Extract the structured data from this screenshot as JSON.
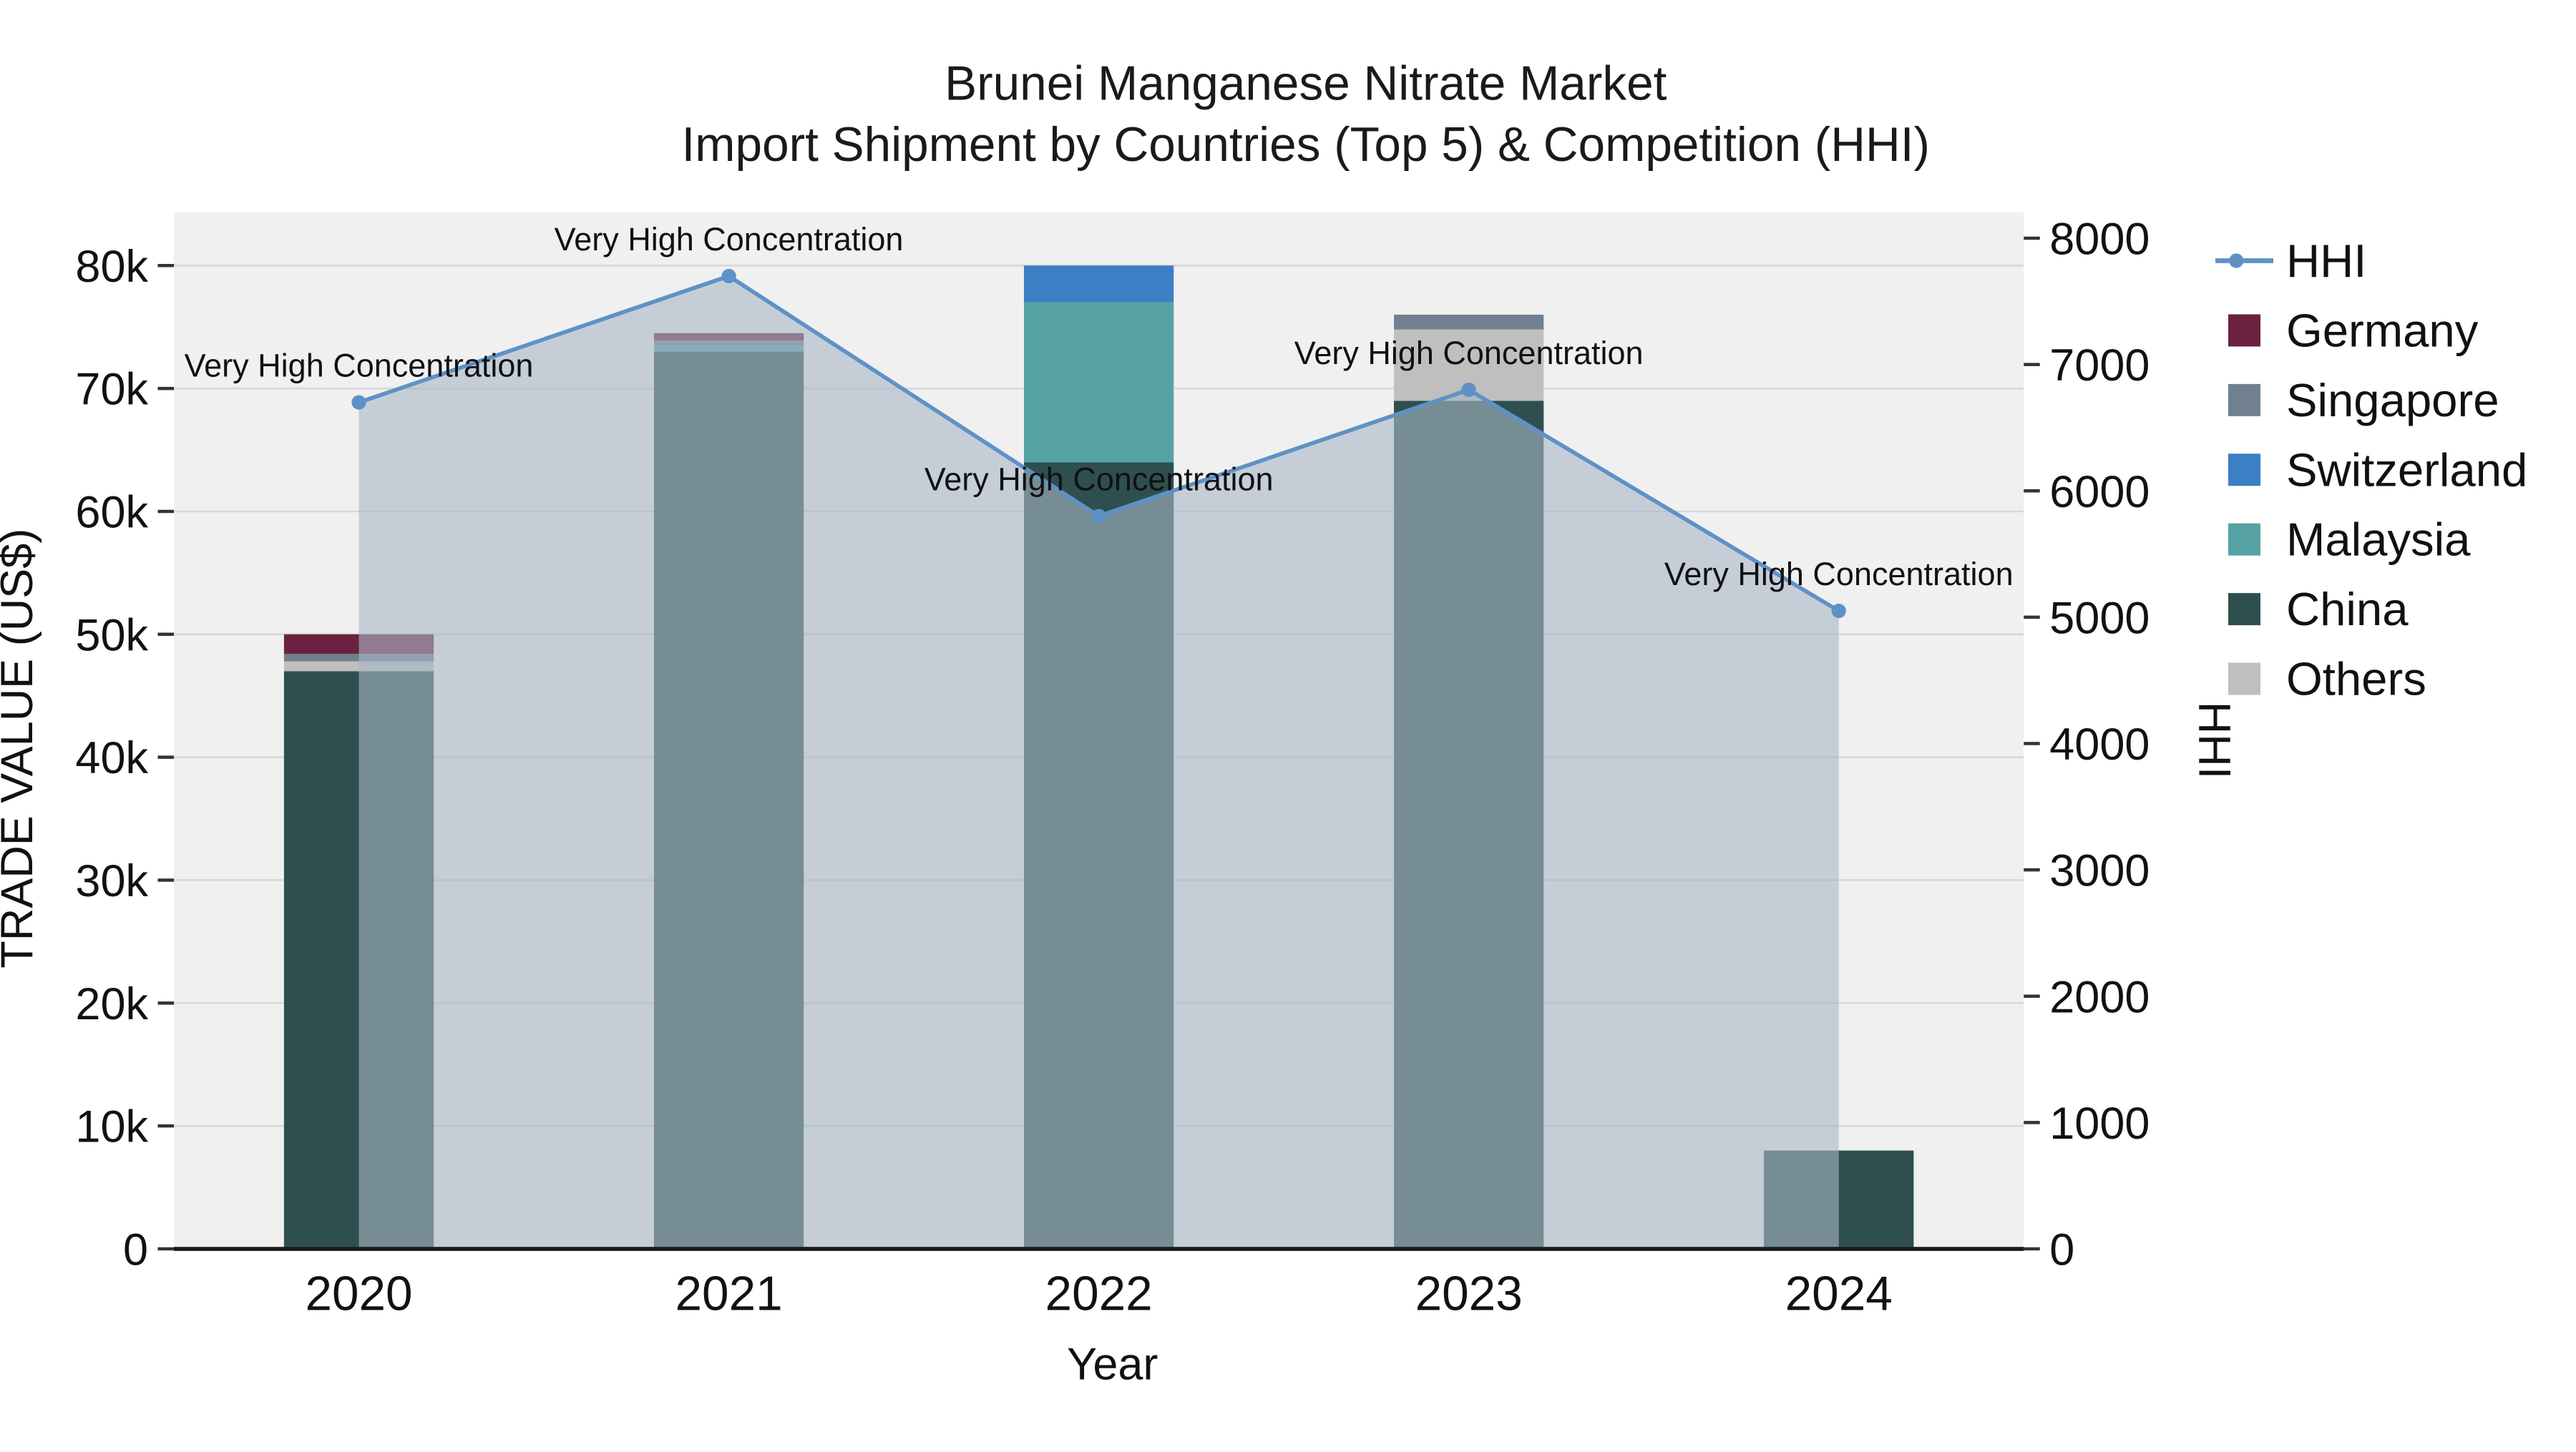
{
  "title": {
    "line1": "Brunei Manganese Nitrate Market",
    "line2": "Import Shipment by Countries (Top 5) & Competition (HHI)"
  },
  "axes": {
    "x_title": "Year",
    "y_left_title": "TRADE VALUE (US$)",
    "y_right_title": "HHI"
  },
  "legend": {
    "items": [
      "HHI",
      "Germany",
      "Singapore",
      "Switzerland",
      "Malaysia",
      "China",
      "Others"
    ]
  },
  "colors": {
    "plot_background": "#f0f0f0",
    "gridline": "#d8d8d8",
    "axis_line": "#1a1a1a",
    "annotation_text": "#000000"
  },
  "chart_data": {
    "type": "bar",
    "subtype": "stacked-bars-with-hhi-line-and-area",
    "title": "Brunei Manganese Nitrate Market — Import Shipment by Countries (Top 5) & Competition (HHI)",
    "categories": [
      "2020",
      "2021",
      "2022",
      "2023",
      "2024"
    ],
    "bar_value_unit": "TRADE VALUE (US$)",
    "series": [
      {
        "name": "Germany",
        "color": "#6b2140",
        "values": [
          1600,
          600,
          0,
          0,
          0
        ]
      },
      {
        "name": "Singapore",
        "color": "#708090",
        "values": [
          600,
          400,
          0,
          1200,
          0
        ]
      },
      {
        "name": "Switzerland",
        "color": "#3b7fc4",
        "values": [
          0,
          0,
          3000,
          0,
          0
        ]
      },
      {
        "name": "Malaysia",
        "color": "#57a3a3",
        "values": [
          0,
          500,
          13000,
          0,
          0
        ]
      },
      {
        "name": "China",
        "color": "#2f4f4f",
        "values": [
          47000,
          73000,
          64000,
          69000,
          8000
        ]
      },
      {
        "name": "Others",
        "color": "#bfbfbf",
        "values": [
          800,
          0,
          0,
          5800,
          0
        ]
      }
    ],
    "stack_order_bottom_to_top": [
      "China",
      "Others",
      "Malaysia",
      "Switzerland",
      "Singapore",
      "Germany"
    ],
    "bar_totals": [
      50000,
      74500,
      80000,
      76000,
      8000
    ],
    "line": {
      "name": "HHI",
      "color": "#5e92c6",
      "area_fill": "rgba(168,183,199,0.6)",
      "values": [
        6700,
        7700,
        5800,
        6800,
        5050
      ]
    },
    "annotations": [
      {
        "x": "2020",
        "text": "Very High Concentration"
      },
      {
        "x": "2021",
        "text": "Very High Concentration"
      },
      {
        "x": "2022",
        "text": "Very High Concentration"
      },
      {
        "x": "2023",
        "text": "Very High Concentration"
      },
      {
        "x": "2024",
        "text": "Very High Concentration"
      }
    ],
    "y_left": {
      "min": 0,
      "max": 80000,
      "ticks": [
        "0",
        "10k",
        "20k",
        "30k",
        "40k",
        "50k",
        "60k",
        "70k",
        "80k"
      ],
      "label": "TRADE VALUE (US$)"
    },
    "y_right": {
      "min": 0,
      "max": 8000,
      "ticks": [
        "0",
        "1000",
        "2000",
        "3000",
        "4000",
        "5000",
        "6000",
        "7000",
        "8000"
      ],
      "label": "HHI"
    },
    "legend_position": "right",
    "grid": "horizontal"
  }
}
